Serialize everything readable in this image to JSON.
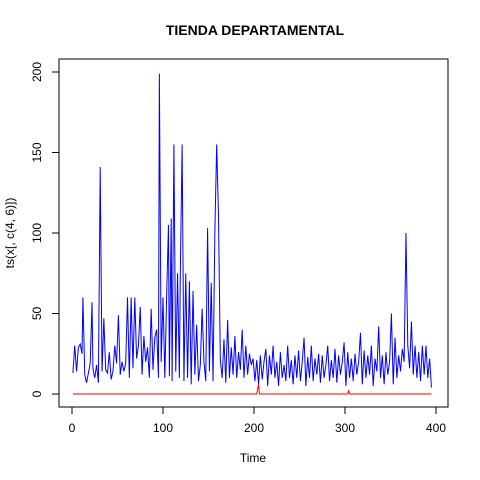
{
  "chart_data": {
    "type": "line",
    "title": "TIENDA DEPARTAMENTAL",
    "xlabel": "Time",
    "ylabel": "ts(x[, c(4, 6)])",
    "xlim": [
      1,
      395
    ],
    "ylim": [
      0,
      200
    ],
    "xticks": [
      0,
      100,
      200,
      300,
      400
    ],
    "yticks": [
      0,
      50,
      100,
      150,
      200
    ],
    "grid": false,
    "legend": "none",
    "series": [
      {
        "color": "#0000FF",
        "points": [
          [
            1,
            13
          ],
          [
            3,
            30
          ],
          [
            5,
            14
          ],
          [
            7,
            29
          ],
          [
            9,
            31
          ],
          [
            11,
            25
          ],
          [
            12,
            60
          ],
          [
            14,
            12
          ],
          [
            16,
            7
          ],
          [
            18,
            13
          ],
          [
            20,
            19
          ],
          [
            22,
            57
          ],
          [
            23,
            16
          ],
          [
            25,
            10
          ],
          [
            27,
            18
          ],
          [
            29,
            7
          ],
          [
            31,
            141
          ],
          [
            33,
            14
          ],
          [
            35,
            47
          ],
          [
            37,
            15
          ],
          [
            39,
            13
          ],
          [
            41,
            26
          ],
          [
            43,
            9
          ],
          [
            45,
            14
          ],
          [
            47,
            30
          ],
          [
            49,
            19
          ],
          [
            51,
            49
          ],
          [
            53,
            12
          ],
          [
            55,
            20
          ],
          [
            57,
            14
          ],
          [
            59,
            19
          ],
          [
            61,
            60
          ],
          [
            63,
            10
          ],
          [
            65,
            60
          ],
          [
            67,
            16
          ],
          [
            69,
            60
          ],
          [
            71,
            22
          ],
          [
            73,
            30
          ],
          [
            75,
            54
          ],
          [
            77,
            12
          ],
          [
            79,
            36
          ],
          [
            81,
            20
          ],
          [
            83,
            29
          ],
          [
            85,
            10
          ],
          [
            87,
            53
          ],
          [
            89,
            15
          ],
          [
            91,
            35
          ],
          [
            93,
            40
          ],
          [
            95,
            10
          ],
          [
            96,
            199
          ],
          [
            98,
            20
          ],
          [
            100,
            60
          ],
          [
            102,
            10
          ],
          [
            104,
            61
          ],
          [
            106,
            105
          ],
          [
            107,
            11
          ],
          [
            109,
            109
          ],
          [
            110,
            8
          ],
          [
            112,
            155
          ],
          [
            114,
            14
          ],
          [
            116,
            75
          ],
          [
            118,
            10
          ],
          [
            119,
            74
          ],
          [
            121,
            155
          ],
          [
            123,
            8
          ],
          [
            125,
            75
          ],
          [
            127,
            10
          ],
          [
            129,
            70
          ],
          [
            131,
            6
          ],
          [
            133,
            64
          ],
          [
            135,
            12
          ],
          [
            137,
            43
          ],
          [
            139,
            8
          ],
          [
            141,
            18
          ],
          [
            143,
            53
          ],
          [
            145,
            20
          ],
          [
            147,
            8
          ],
          [
            149,
            103
          ],
          [
            151,
            14
          ],
          [
            153,
            69
          ],
          [
            155,
            8
          ],
          [
            157,
            101
          ],
          [
            159,
            155
          ],
          [
            161,
            110
          ],
          [
            163,
            21
          ],
          [
            165,
            10
          ],
          [
            167,
            34
          ],
          [
            169,
            7
          ],
          [
            171,
            46
          ],
          [
            173,
            10
          ],
          [
            175,
            29
          ],
          [
            177,
            12
          ],
          [
            179,
            36
          ],
          [
            181,
            10
          ],
          [
            183,
            26
          ],
          [
            185,
            15
          ],
          [
            187,
            40
          ],
          [
            189,
            10
          ],
          [
            191,
            30
          ],
          [
            193,
            12
          ],
          [
            195,
            25
          ],
          [
            197,
            18
          ],
          [
            199,
            22
          ],
          [
            201,
            8
          ],
          [
            203,
            21
          ],
          [
            205,
            6
          ],
          [
            207,
            24
          ],
          [
            209,
            9
          ],
          [
            211,
            20
          ],
          [
            213,
            28
          ],
          [
            215,
            5
          ],
          [
            217,
            24
          ],
          [
            219,
            12
          ],
          [
            221,
            30
          ],
          [
            223,
            10
          ],
          [
            225,
            20
          ],
          [
            227,
            5
          ],
          [
            229,
            26
          ],
          [
            231,
            10
          ],
          [
            233,
            18
          ],
          [
            235,
            8
          ],
          [
            237,
            30
          ],
          [
            239,
            10
          ],
          [
            241,
            21
          ],
          [
            243,
            6
          ],
          [
            245,
            24
          ],
          [
            247,
            10
          ],
          [
            249,
            27
          ],
          [
            251,
            8
          ],
          [
            253,
            20
          ],
          [
            255,
            35
          ],
          [
            257,
            5
          ],
          [
            259,
            23
          ],
          [
            261,
            10
          ],
          [
            263,
            30
          ],
          [
            265,
            8
          ],
          [
            267,
            22
          ],
          [
            269,
            12
          ],
          [
            271,
            25
          ],
          [
            273,
            7
          ],
          [
            275,
            24
          ],
          [
            277,
            10
          ],
          [
            279,
            18
          ],
          [
            281,
            30
          ],
          [
            283,
            8
          ],
          [
            285,
            21
          ],
          [
            287,
            10
          ],
          [
            289,
            28
          ],
          [
            291,
            7
          ],
          [
            293,
            24
          ],
          [
            295,
            12
          ],
          [
            297,
            20
          ],
          [
            299,
            32
          ],
          [
            301,
            5
          ],
          [
            303,
            26
          ],
          [
            305,
            10
          ],
          [
            307,
            22
          ],
          [
            309,
            8
          ],
          [
            311,
            25
          ],
          [
            313,
            12
          ],
          [
            315,
            20
          ],
          [
            317,
            38
          ],
          [
            319,
            6
          ],
          [
            321,
            27
          ],
          [
            323,
            10
          ],
          [
            325,
            24
          ],
          [
            327,
            12
          ],
          [
            329,
            30
          ],
          [
            331,
            5
          ],
          [
            333,
            22
          ],
          [
            335,
            14
          ],
          [
            337,
            42
          ],
          [
            339,
            10
          ],
          [
            341,
            24
          ],
          [
            343,
            6
          ],
          [
            345,
            26
          ],
          [
            347,
            12
          ],
          [
            349,
            20
          ],
          [
            351,
            50
          ],
          [
            353,
            6
          ],
          [
            355,
            35
          ],
          [
            357,
            10
          ],
          [
            359,
            24
          ],
          [
            361,
            14
          ],
          [
            363,
            28
          ],
          [
            365,
            20
          ],
          [
            367,
            100
          ],
          [
            369,
            30
          ],
          [
            371,
            16
          ],
          [
            373,
            45
          ],
          [
            375,
            12
          ],
          [
            377,
            30
          ],
          [
            379,
            10
          ],
          [
            381,
            26
          ],
          [
            383,
            8
          ],
          [
            385,
            30
          ],
          [
            387,
            12
          ],
          [
            389,
            30
          ],
          [
            391,
            10
          ],
          [
            393,
            22
          ],
          [
            395,
            4
          ]
        ]
      },
      {
        "color": "#FF0000",
        "points": [
          [
            1,
            0
          ],
          [
            203,
            0
          ],
          [
            205,
            6
          ],
          [
            206,
            0
          ],
          [
            303,
            0
          ],
          [
            304,
            2
          ],
          [
            305,
            0
          ],
          [
            395,
            0
          ]
        ]
      }
    ]
  }
}
